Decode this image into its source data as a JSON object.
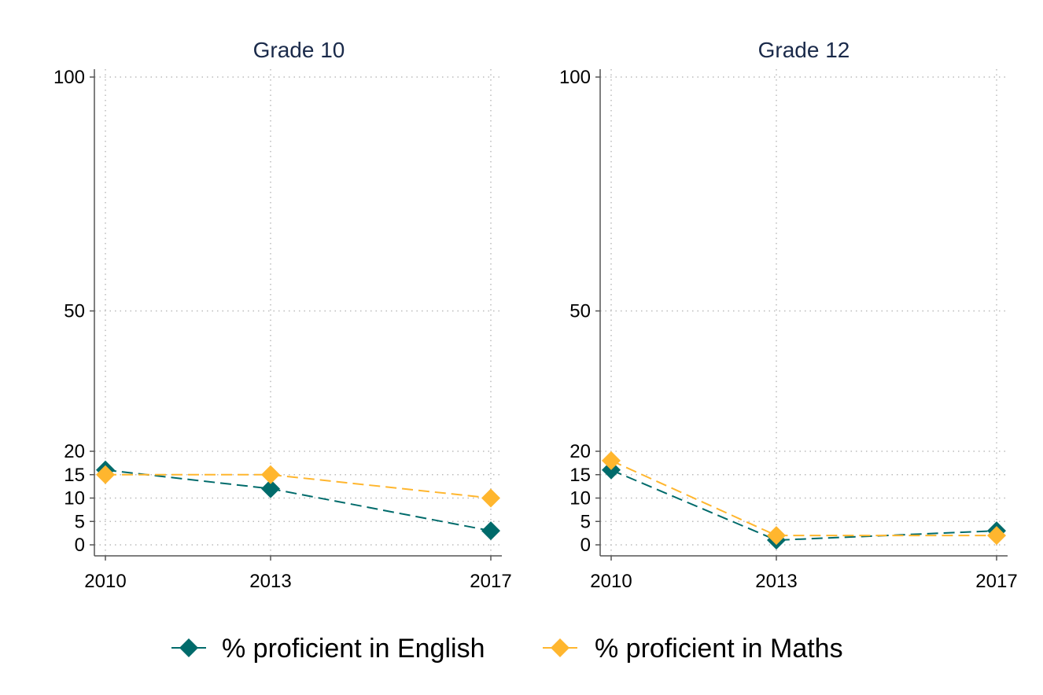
{
  "chart_data": {
    "type": "line",
    "x": [
      2010,
      2013,
      2017
    ],
    "xticks": [
      "2010",
      "2013",
      "2017"
    ],
    "yticks": [
      "0",
      "5",
      "10",
      "15",
      "20",
      "50",
      "100"
    ],
    "ytick_values": [
      0,
      5,
      10,
      15,
      20,
      50,
      100
    ],
    "ylim": [
      0,
      100
    ],
    "grid": true,
    "legend_position": "bottom",
    "colors": {
      "english": "#006b6b",
      "maths": "#ffb62e"
    },
    "panels": [
      {
        "title": "Grade 10",
        "series": [
          {
            "name": "% proficient in English",
            "key": "english",
            "values": [
              16,
              12,
              3
            ]
          },
          {
            "name": "% proficient in Maths",
            "key": "maths",
            "values": [
              15,
              15,
              10
            ]
          }
        ]
      },
      {
        "title": "Grade 12",
        "series": [
          {
            "name": "% proficient in English",
            "key": "english",
            "values": [
              16,
              1,
              3
            ]
          },
          {
            "name": "% proficient in Maths",
            "key": "maths",
            "values": [
              18,
              2,
              2
            ]
          }
        ]
      }
    ],
    "legend": [
      "% proficient in English",
      "% proficient in Maths"
    ]
  }
}
